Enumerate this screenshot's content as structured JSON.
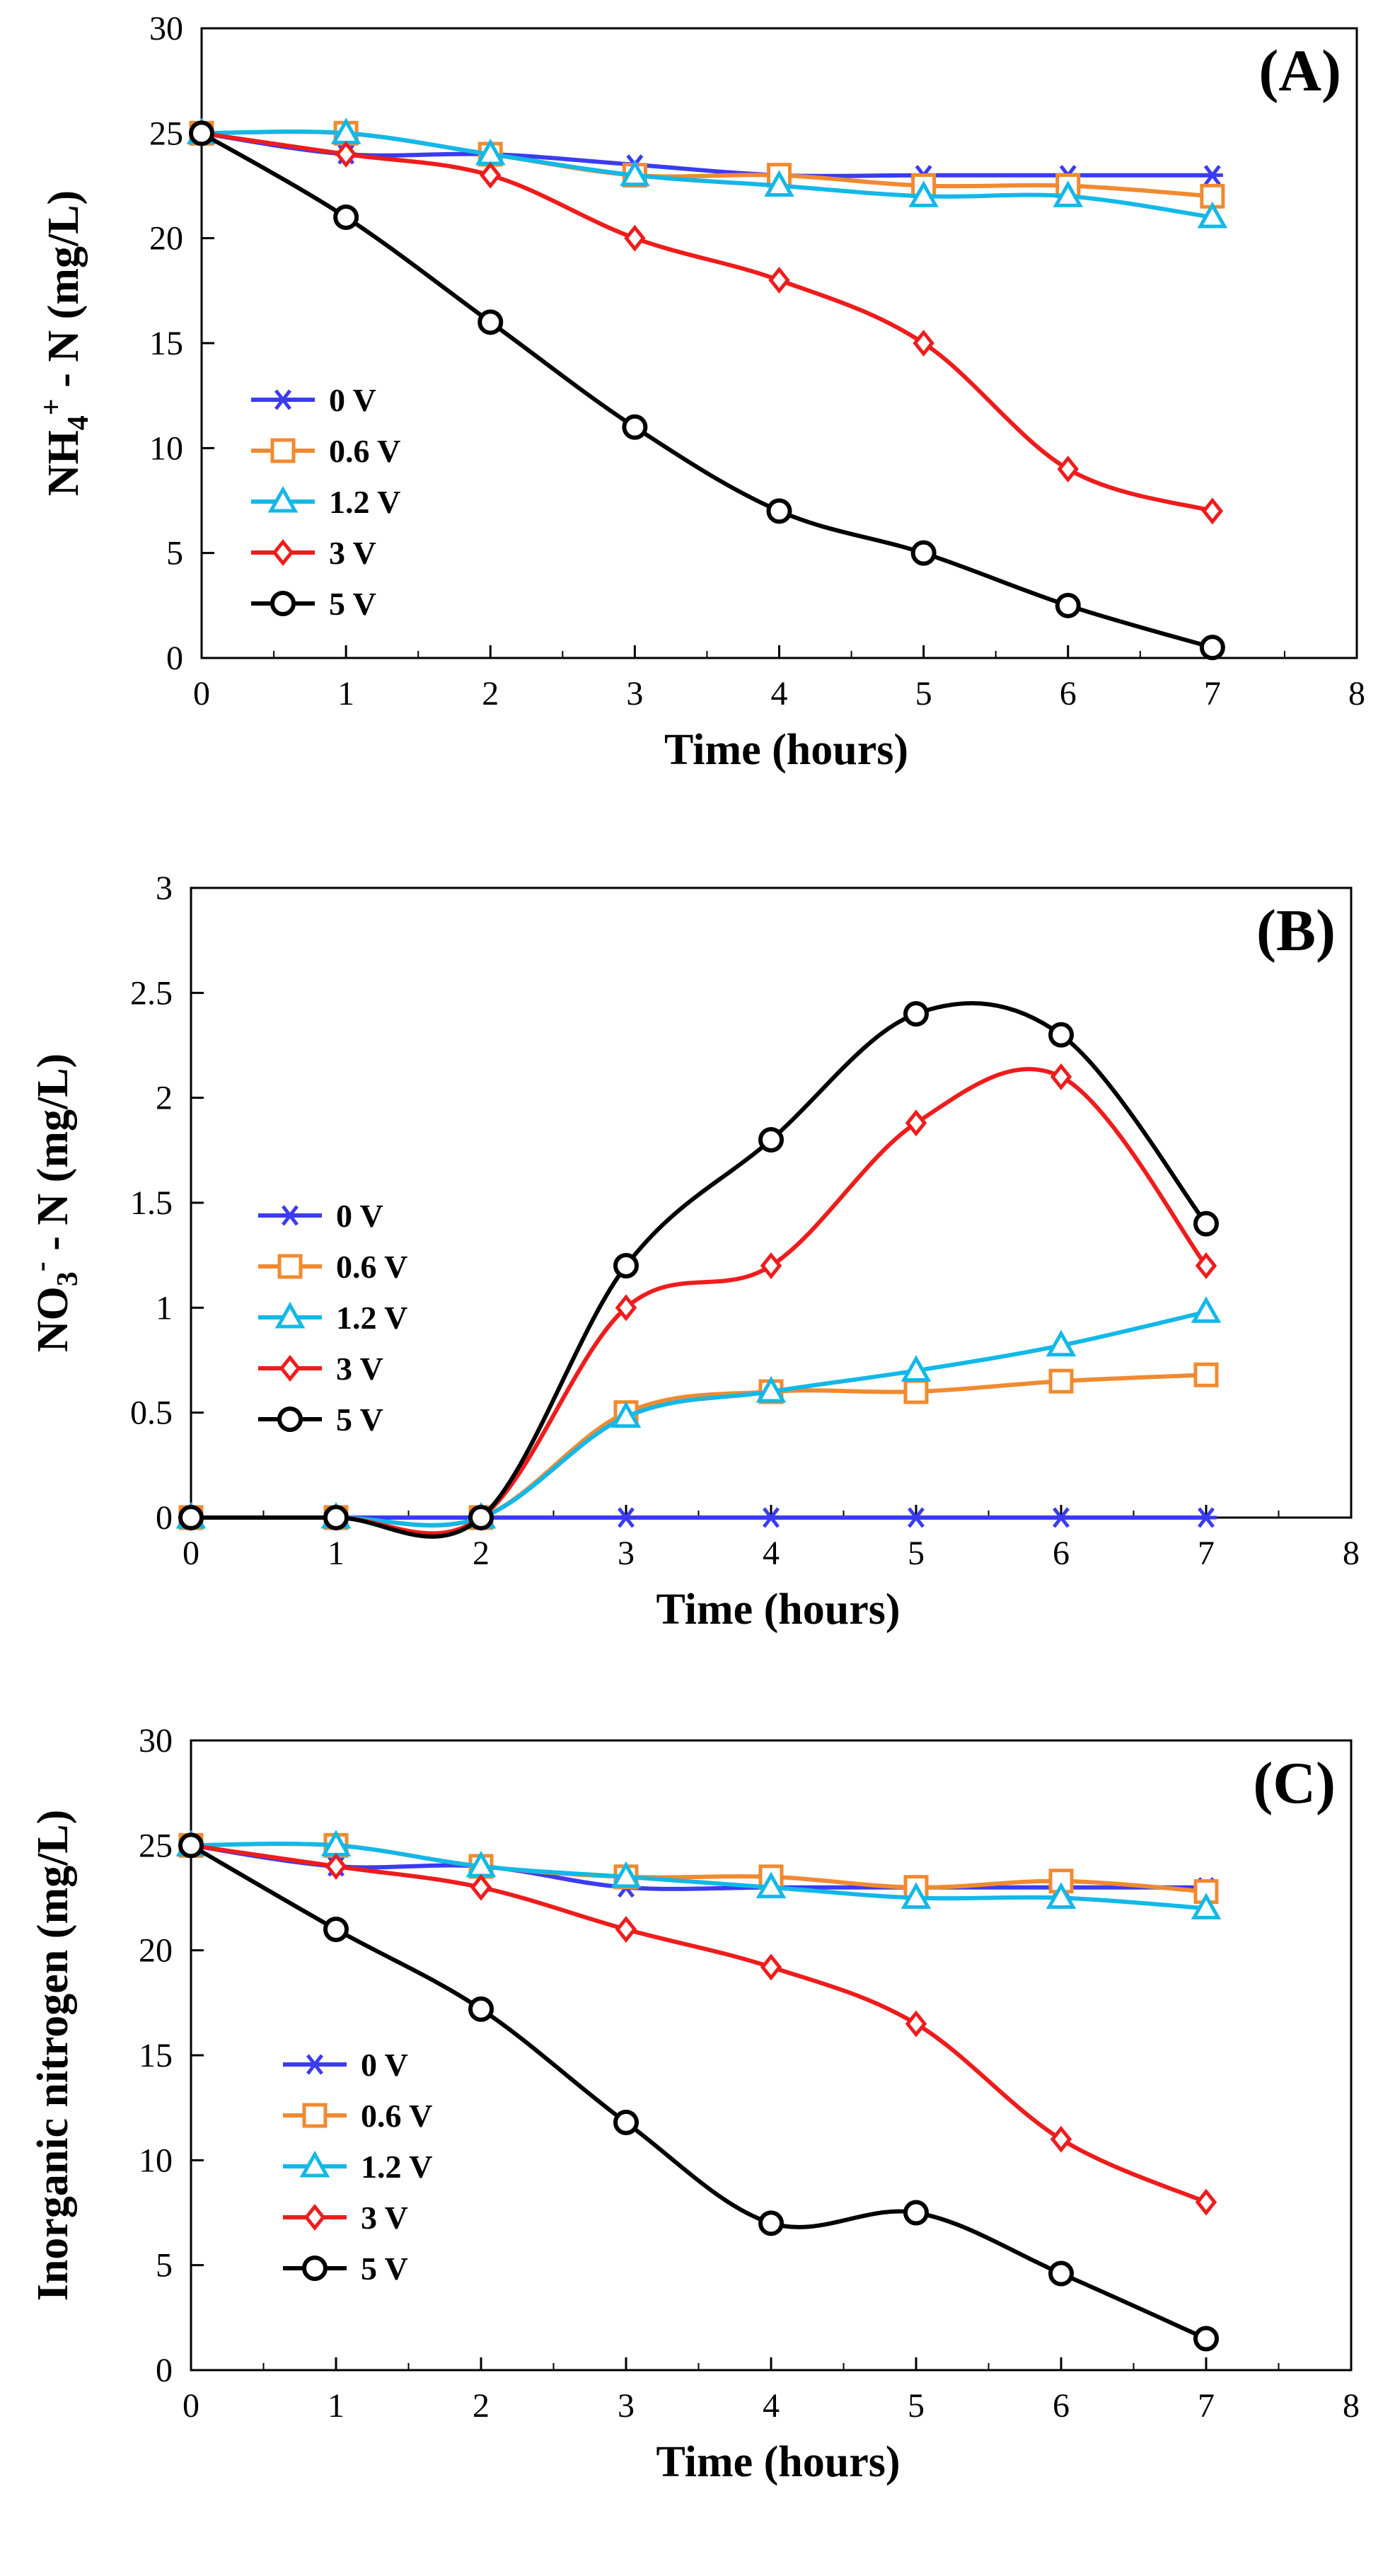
{
  "series_styles": [
    {
      "name": "0 V",
      "color": "#3b3bf0",
      "marker": "asterisk"
    },
    {
      "name": "0.6 V",
      "color": "#f08a30",
      "marker": "square"
    },
    {
      "name": "1.2 V",
      "color": "#12b8e8",
      "marker": "triangle"
    },
    {
      "name": "3 V",
      "color": "#ee1c1c",
      "marker": "diamond"
    },
    {
      "name": "5 V",
      "color": "#000000",
      "marker": "circle"
    }
  ],
  "chart_data": [
    {
      "type": "line",
      "panel": "(A)",
      "title": "",
      "xlabel": "Time (hours)",
      "ylabel_main": "NH",
      "ylabel_sub": "4",
      "ylabel_sup": "+",
      "ylabel_rest": " - N (mg/L)",
      "xlim": [
        0,
        8
      ],
      "ylim": [
        0,
        30
      ],
      "xticks": [
        "0",
        "1",
        "2",
        "3",
        "4",
        "5",
        "6",
        "7",
        "8"
      ],
      "yticks": [
        "0",
        "5",
        "10",
        "15",
        "20",
        "25",
        "30"
      ],
      "legend": "left-middle",
      "x": [
        0,
        1,
        2,
        3,
        4,
        5,
        6,
        7
      ],
      "series": [
        {
          "name": "0 V",
          "values": [
            25,
            24,
            24,
            23.5,
            23,
            23,
            23,
            23
          ]
        },
        {
          "name": "0.6 V",
          "values": [
            25,
            25,
            24,
            23,
            23,
            22.5,
            22.5,
            22
          ]
        },
        {
          "name": "1.2 V",
          "values": [
            25,
            25,
            24,
            23,
            22.5,
            22,
            22,
            21
          ]
        },
        {
          "name": "3 V",
          "values": [
            25,
            24,
            23,
            20,
            18,
            15,
            9,
            7
          ]
        },
        {
          "name": "5 V",
          "values": [
            25,
            21,
            16,
            11,
            7,
            5,
            2.5,
            0.5
          ]
        }
      ]
    },
    {
      "type": "line",
      "panel": "(B)",
      "title": "",
      "xlabel": "Time (hours)",
      "ylabel_main": "NO",
      "ylabel_sub": "3",
      "ylabel_sup": "-",
      "ylabel_rest": " - N (mg/L)",
      "xlim": [
        0,
        8
      ],
      "ylim": [
        0,
        3
      ],
      "xticks": [
        "0",
        "1",
        "2",
        "3",
        "4",
        "5",
        "6",
        "7",
        "8"
      ],
      "yticks": [
        "0",
        "0.5",
        "1",
        "1.5",
        "2",
        "2.5",
        "3"
      ],
      "legend": "left-middle",
      "x": [
        0,
        1,
        2,
        3,
        4,
        5,
        6,
        7
      ],
      "series": [
        {
          "name": "0 V",
          "values": [
            0,
            0,
            0,
            0,
            0,
            0,
            0,
            0
          ]
        },
        {
          "name": "0.6 V",
          "values": [
            0,
            0,
            0,
            0.5,
            0.6,
            0.6,
            0.65,
            0.68
          ]
        },
        {
          "name": "1.2 V",
          "values": [
            0,
            0,
            0,
            0.48,
            0.6,
            0.7,
            0.82,
            0.98
          ]
        },
        {
          "name": "3 V",
          "values": [
            0,
            0,
            0,
            1.0,
            1.2,
            1.88,
            2.1,
            1.2
          ]
        },
        {
          "name": "5 V",
          "values": [
            0,
            0,
            0,
            1.2,
            1.8,
            2.4,
            2.3,
            1.4
          ]
        }
      ]
    },
    {
      "type": "line",
      "panel": "(C)",
      "title": "",
      "xlabel": "Time (hours)",
      "ylabel_main": "Inorganic nitrogen (mg/L)",
      "ylabel_sub": "",
      "ylabel_sup": "",
      "ylabel_rest": "",
      "xlim": [
        0,
        8
      ],
      "ylim": [
        0,
        30
      ],
      "xticks": [
        "0",
        "1",
        "2",
        "3",
        "4",
        "5",
        "6",
        "7",
        "8"
      ],
      "yticks": [
        "0",
        "5",
        "10",
        "15",
        "20",
        "25",
        "30"
      ],
      "legend": "left-middle",
      "x": [
        0,
        1,
        2,
        3,
        4,
        5,
        6,
        7
      ],
      "series": [
        {
          "name": "0 V",
          "values": [
            25,
            24,
            24,
            23,
            23,
            23,
            23,
            23
          ]
        },
        {
          "name": "0.6 V",
          "values": [
            25,
            25,
            24,
            23.5,
            23.5,
            23,
            23.3,
            22.8
          ]
        },
        {
          "name": "1.2 V",
          "values": [
            25,
            25,
            24,
            23.5,
            23,
            22.5,
            22.5,
            22
          ]
        },
        {
          "name": "3 V",
          "values": [
            25,
            24,
            23,
            21,
            19.2,
            16.5,
            11,
            8
          ]
        },
        {
          "name": "5 V",
          "values": [
            25,
            21,
            17.2,
            11.8,
            7,
            7.5,
            4.6,
            1.5
          ]
        }
      ]
    }
  ]
}
